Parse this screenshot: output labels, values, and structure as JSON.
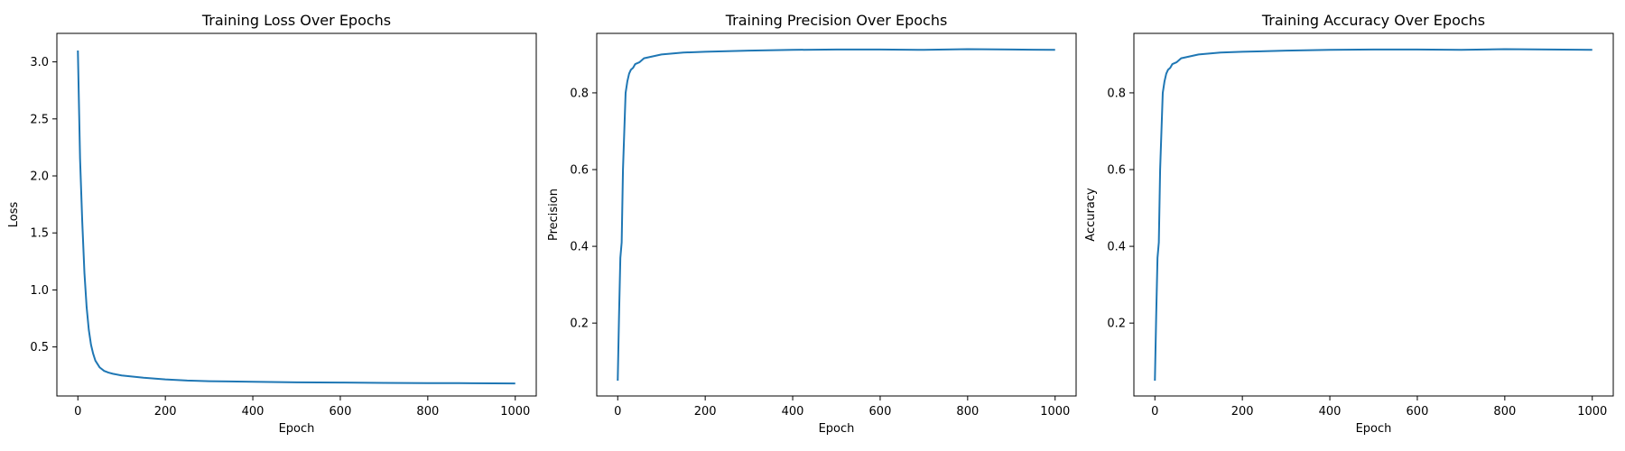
{
  "figure": {
    "line_color": "#1f77b4",
    "background": "#ffffff"
  },
  "chart_data": [
    {
      "type": "line",
      "title": "Training Loss Over Epochs",
      "xlabel": "Epoch",
      "ylabel": "Loss",
      "xlim": [
        -48,
        1048
      ],
      "ylim": [
        0.07,
        3.25
      ],
      "xticks": [
        0,
        200,
        400,
        600,
        800,
        1000
      ],
      "xtick_labels": [
        "0",
        "200",
        "400",
        "600",
        "800",
        "1000"
      ],
      "yticks": [
        0.5,
        1.0,
        1.5,
        2.0,
        2.5,
        3.0
      ],
      "ytick_labels": [
        "0.5",
        "1.0",
        "1.5",
        "2.0",
        "2.5",
        "3.0"
      ],
      "grid": false,
      "legend": "none",
      "x": [
        0,
        5,
        10,
        15,
        20,
        25,
        30,
        35,
        40,
        50,
        60,
        70,
        80,
        100,
        125,
        150,
        200,
        250,
        300,
        400,
        500,
        600,
        700,
        800,
        900,
        1000
      ],
      "values": [
        3.1,
        2.15,
        1.6,
        1.15,
        0.85,
        0.65,
        0.52,
        0.44,
        0.38,
        0.32,
        0.29,
        0.275,
        0.265,
        0.25,
        0.24,
        0.23,
        0.215,
        0.205,
        0.2,
        0.195,
        0.19,
        0.188,
        0.185,
        0.183,
        0.182,
        0.18
      ]
    },
    {
      "type": "line",
      "title": "Training Precision Over Epochs",
      "xlabel": "Epoch",
      "ylabel": "Precision",
      "xlim": [
        -48,
        1048
      ],
      "ylim": [
        0.01,
        0.955
      ],
      "xticks": [
        0,
        200,
        400,
        600,
        800,
        1000
      ],
      "xtick_labels": [
        "0",
        "200",
        "400",
        "600",
        "800",
        "1000"
      ],
      "yticks": [
        0.2,
        0.4,
        0.6,
        0.8
      ],
      "ytick_labels": [
        "0.2",
        "0.4",
        "0.6",
        "0.8"
      ],
      "grid": false,
      "legend": "none",
      "x": [
        0,
        3,
        6,
        9,
        12,
        15,
        18,
        22,
        26,
        30,
        35,
        40,
        50,
        60,
        80,
        100,
        150,
        200,
        300,
        400,
        500,
        600,
        700,
        800,
        900,
        1000
      ],
      "values": [
        0.05,
        0.22,
        0.37,
        0.41,
        0.6,
        0.7,
        0.8,
        0.83,
        0.85,
        0.86,
        0.865,
        0.875,
        0.88,
        0.89,
        0.895,
        0.9,
        0.905,
        0.907,
        0.91,
        0.912,
        0.913,
        0.913,
        0.912,
        0.914,
        0.913,
        0.912
      ]
    },
    {
      "type": "line",
      "title": "Training Accuracy Over Epochs",
      "xlabel": "Epoch",
      "ylabel": "Accuracy",
      "xlim": [
        -48,
        1048
      ],
      "ylim": [
        0.01,
        0.955
      ],
      "xticks": [
        0,
        200,
        400,
        600,
        800,
        1000
      ],
      "xtick_labels": [
        "0",
        "200",
        "400",
        "600",
        "800",
        "1000"
      ],
      "yticks": [
        0.2,
        0.4,
        0.6,
        0.8
      ],
      "ytick_labels": [
        "0.2",
        "0.4",
        "0.6",
        "0.8"
      ],
      "grid": false,
      "legend": "none",
      "x": [
        0,
        3,
        6,
        9,
        12,
        15,
        18,
        22,
        26,
        30,
        35,
        40,
        50,
        60,
        80,
        100,
        150,
        200,
        300,
        400,
        500,
        600,
        700,
        800,
        900,
        1000
      ],
      "values": [
        0.05,
        0.22,
        0.37,
        0.41,
        0.6,
        0.7,
        0.8,
        0.83,
        0.85,
        0.86,
        0.865,
        0.875,
        0.88,
        0.89,
        0.895,
        0.9,
        0.905,
        0.907,
        0.91,
        0.912,
        0.913,
        0.913,
        0.912,
        0.914,
        0.913,
        0.912
      ]
    }
  ]
}
